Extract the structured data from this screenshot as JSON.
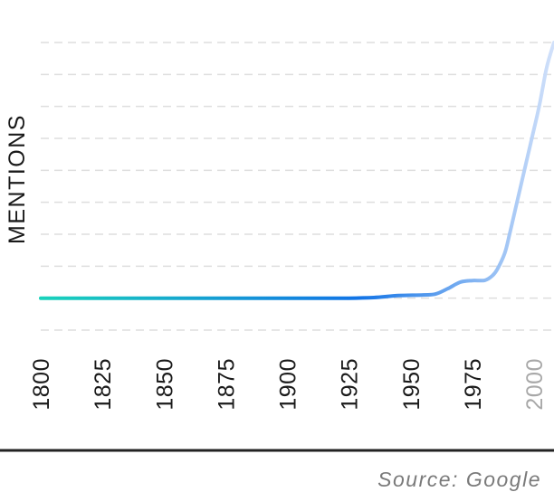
{
  "chart_data": {
    "type": "line",
    "ylabel": "MENTIONS",
    "source": "Source: Google",
    "x_ticks": [
      1800,
      1825,
      1850,
      1875,
      1900,
      1925,
      1950,
      1975,
      2000
    ],
    "x_tick_labels": [
      "1800",
      "1825",
      "1850",
      "1875",
      "1900",
      "1925",
      "1950",
      "1975",
      "2000"
    ],
    "highlight_tick": "2000",
    "xlim": [
      1800,
      2008
    ],
    "ylim": [
      -1,
      8
    ],
    "grid": true,
    "legend": "none",
    "series": [
      {
        "x": [
          1800,
          1825,
          1850,
          1875,
          1900,
          1925,
          1935,
          1945,
          1955,
          1960,
          1965,
          1970,
          1975,
          1980,
          1983,
          1985,
          1988,
          1990,
          1993,
          1996,
          1999,
          2002,
          2005,
          2008
        ],
        "y": [
          0,
          0,
          0,
          0,
          0,
          0,
          0.02,
          0.08,
          0.1,
          0.13,
          0.3,
          0.5,
          0.55,
          0.56,
          0.7,
          0.9,
          1.4,
          2.0,
          3.0,
          4.0,
          5.0,
          6.0,
          7.2,
          8.0
        ],
        "colors": {
          "start": "#19d2bb",
          "mid": "#1173e6",
          "end_light": "#d2e1fa"
        }
      }
    ],
    "colors": {
      "grid": "#dedede",
      "axis": "#222222",
      "tick": "#1a1a1a",
      "tick_muted": "#a8a8a8"
    }
  }
}
